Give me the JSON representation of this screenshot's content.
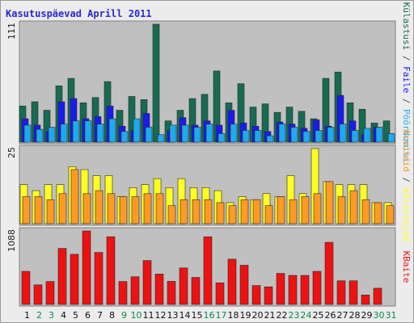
{
  "chart_data": {
    "type": "bar",
    "title": "Kasutuspäevad Aprill 2011",
    "days": [
      "1",
      "2",
      "3",
      "4",
      "5",
      "6",
      "7",
      "8",
      "9",
      "10",
      "11",
      "12",
      "13",
      "14",
      "15",
      "16",
      "17",
      "18",
      "19",
      "20",
      "21",
      "22",
      "23",
      "24",
      "25",
      "26",
      "27",
      "28",
      "29",
      "30",
      "31"
    ],
    "weekend_days": [
      "2",
      "3",
      "9",
      "10",
      "16",
      "17",
      "23",
      "24",
      "30",
      "31"
    ],
    "colors": {
      "weekday_label": "#101010",
      "weekend_label": "#0a8a4a",
      "kulastusi": "#166b52",
      "failid": "#1a1aee",
      "poordumisi": "#1eaaee",
      "kulastajad": "#ffff22",
      "arvuteid": "#ff9a22",
      "kbaite": "#ee1111",
      "title": "#2a2ad0",
      "panel_bg": "#c0c0c0",
      "frame_bg": "#ececec"
    },
    "panels": [
      {
        "id": "hits",
        "ymax_label": "111",
        "ymax": 111,
        "label_text": "Külastusi / Faile / Pöördumisi",
        "label_parts": [
          {
            "text": "Külastusi",
            "color": "#166b52"
          },
          {
            "text": " / ",
            "color": "#555555"
          },
          {
            "text": "Faile",
            "color": "#1a1aee"
          },
          {
            "text": " / ",
            "color": "#555555"
          },
          {
            "text": "Pöördumisi",
            "color": "#1eaaee"
          }
        ],
        "series": [
          {
            "name": "Külastusi",
            "color": "#166b52",
            "values": [
              34,
              38,
              30,
              53,
              60,
              37,
              42,
              57,
              30,
              43,
              40,
              111,
              20,
              30,
              41,
              45,
              67,
              37,
              55,
              33,
              36,
              28,
              33,
              29,
              22,
              60,
              66,
              37,
              31,
              18,
              20
            ]
          },
          {
            "name": "Faile",
            "color": "#1a1aee",
            "values": [
              22,
              16,
              10,
              38,
              41,
              22,
              24,
              34,
              15,
              11,
              27,
              0,
              11,
              23,
              16,
              20,
              16,
              30,
              18,
              15,
              10,
              19,
              17,
              13,
              21,
              15,
              44,
              20,
              7,
              14,
              0
            ]
          },
          {
            "name": "Pöördumisi",
            "color": "#1eaaee",
            "values": [
              16,
              12,
              14,
              17,
              20,
              20,
              17,
              22,
              10,
              22,
              14,
              7,
              16,
              16,
              14,
              17,
              8,
              17,
              11,
              11,
              6,
              17,
              14,
              10,
              11,
              14,
              17,
              11,
              13,
              14,
              8
            ]
          }
        ]
      },
      {
        "id": "visits",
        "ymax_label": "25",
        "ymax": 25,
        "label_text": "Arvuteid / Külastajad",
        "label_parts": [
          {
            "text": "Arvuteid",
            "color": "#ff9a22"
          },
          {
            "text": " / ",
            "color": "#555555"
          },
          {
            "text": "Külastajad",
            "color": "#ffff22"
          }
        ],
        "series": [
          {
            "name": "Külastajad",
            "color": "#ffff22",
            "values": [
              13,
              11,
              13,
              13,
              19,
              18,
              16,
              16,
              9,
              12,
              13,
              15,
              12,
              15,
              12,
              12,
              11,
              7,
              9,
              8,
              10,
              9,
              16,
              10,
              25,
              14,
              13,
              13,
              13,
              7,
              7
            ]
          },
          {
            "name": "Arvuteid",
            "color": "#ff9a22",
            "values": [
              9,
              9,
              8,
              10,
              18,
              10,
              11,
              10,
              9,
              9,
              10,
              10,
              6,
              8,
              8,
              8,
              7,
              6,
              8,
              8,
              6,
              9,
              8,
              9,
              10,
              14,
              9,
              11,
              8,
              7,
              6
            ]
          }
        ]
      },
      {
        "id": "kbytes",
        "ymax_label": "1088",
        "ymax": 1088,
        "label_text": "KBaite",
        "label_parts": [
          {
            "text": "KBaite",
            "color": "#ee1111"
          }
        ],
        "series": [
          {
            "name": "KBaite",
            "color": "#ee1111",
            "values": [
              490,
              290,
              340,
              830,
              742,
              1088,
              770,
              1002,
              340,
              410,
              650,
              450,
              342,
              540,
              400,
              1002,
              320,
              670,
              580,
              280,
              260,
              460,
              430,
              430,
              490,
              920,
              350,
              350,
              140,
              240,
              0
            ]
          }
        ]
      }
    ]
  }
}
